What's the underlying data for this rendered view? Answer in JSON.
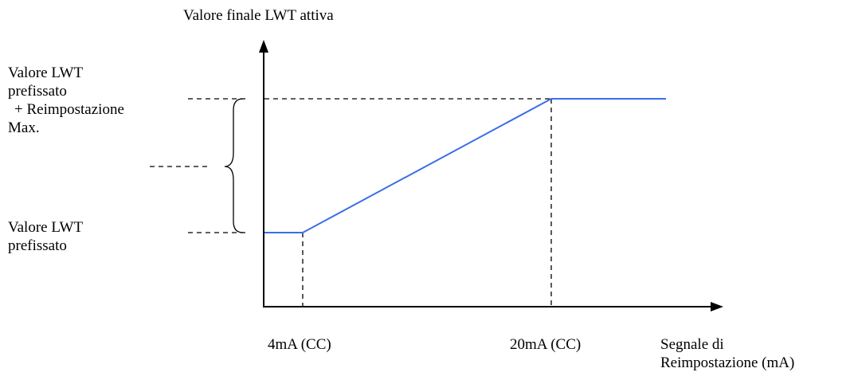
{
  "y_axis_title": "Valore finale LWT attiva",
  "upper_label": {
    "line1": "Valore LWT",
    "line2": "prefissato",
    "line3": "+ Reimpostazione",
    "line4": "Max."
  },
  "lower_label": {
    "line1": "Valore LWT",
    "line2": "prefissato"
  },
  "x_ticks": {
    "low": "4mA (CC)",
    "high": "20mA (CC)"
  },
  "x_axis_title": {
    "line1": "Segnale di",
    "line2": "Reimpostazione (mA)"
  },
  "colors": {
    "curve": "#3b6ee8",
    "axes": "#000000",
    "guides": "#000000"
  }
}
